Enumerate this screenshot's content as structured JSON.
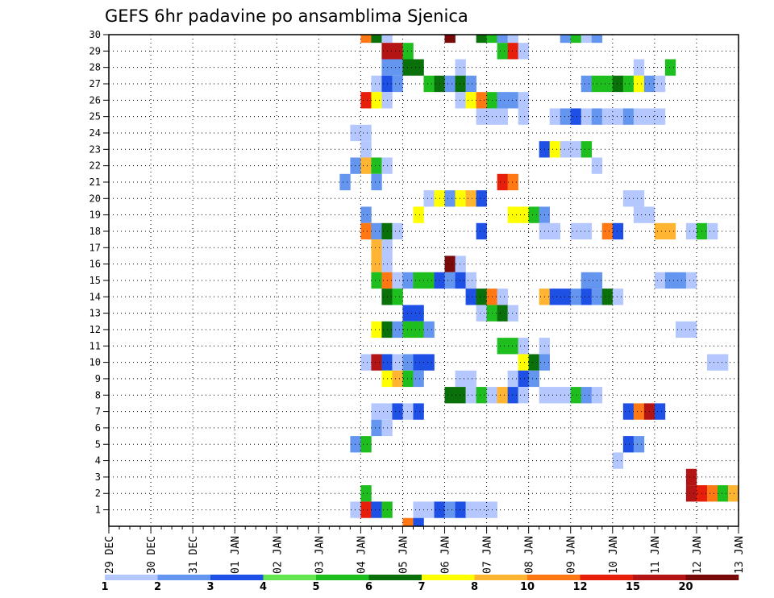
{
  "chart_data": {
    "type": "heatmap",
    "title": "GEFS 6hr padavine po ansamblima Sjenica",
    "xlabel": "",
    "ylabel": "",
    "x_tick_labels": [
      "29 DEC",
      "30 DEC",
      "31 DEC",
      "01 JAN",
      "02 JAN",
      "03 JAN",
      "04 JAN",
      "05 JAN",
      "06 JAN",
      "07 JAN",
      "08 JAN",
      "09 JAN",
      "10 JAN",
      "11 JAN",
      "12 JAN",
      "13 JAN"
    ],
    "y_tick_labels": [
      "1",
      "2",
      "3",
      "4",
      "5",
      "6",
      "7",
      "8",
      "9",
      "10",
      "11",
      "12",
      "13",
      "14",
      "15",
      "16",
      "17",
      "18",
      "19",
      "20",
      "21",
      "22",
      "23",
      "24",
      "25",
      "26",
      "27",
      "28",
      "29",
      "30"
    ],
    "time_step_hours": 6,
    "grid": true,
    "colorbar": {
      "placement": "bottom",
      "labels": [
        "1",
        "2",
        "3",
        "4",
        "5",
        "6",
        "7",
        "8",
        "10",
        "12",
        "15",
        "20"
      ],
      "colors": [
        "#b4c8ff",
        "#6496f0",
        "#1e50e6",
        "#64e650",
        "#1ebe1e",
        "#0a700a",
        "#ffff00",
        "#ffb432",
        "#ff7814",
        "#e61e0a",
        "#b41414",
        "#780a0a"
      ]
    },
    "cells": [
      {
        "m": 30,
        "t": 24,
        "v": 10
      },
      {
        "m": 30,
        "t": 25,
        "v": 6
      },
      {
        "m": 30,
        "t": 26,
        "v": 1
      },
      {
        "m": 30,
        "t": 32,
        "v": 20
      },
      {
        "m": 30,
        "t": 35,
        "v": 6
      },
      {
        "m": 30,
        "t": 36,
        "v": 5
      },
      {
        "m": 30,
        "t": 37,
        "v": 2
      },
      {
        "m": 30,
        "t": 38,
        "v": 1
      },
      {
        "m": 30,
        "t": 43,
        "v": 2
      },
      {
        "m": 30,
        "t": 44,
        "v": 5
      },
      {
        "m": 30,
        "t": 45,
        "v": 1
      },
      {
        "m": 30,
        "t": 46,
        "v": 2
      },
      {
        "m": 29,
        "t": 26,
        "v": 15
      },
      {
        "m": 29,
        "t": 27,
        "v": 15
      },
      {
        "m": 29,
        "t": 28,
        "v": 5
      },
      {
        "m": 29,
        "t": 37,
        "v": 5
      },
      {
        "m": 29,
        "t": 38,
        "v": 12
      },
      {
        "m": 29,
        "t": 39,
        "v": 1
      },
      {
        "m": 28,
        "t": 26,
        "v": 2
      },
      {
        "m": 28,
        "t": 27,
        "v": 2
      },
      {
        "m": 28,
        "t": 28,
        "v": 6
      },
      {
        "m": 28,
        "t": 29,
        "v": 6
      },
      {
        "m": 28,
        "t": 33,
        "v": 1
      },
      {
        "m": 28,
        "t": 50,
        "v": 1
      },
      {
        "m": 28,
        "t": 53,
        "v": 5
      },
      {
        "m": 27,
        "t": 25,
        "v": 1
      },
      {
        "m": 27,
        "t": 26,
        "v": 3
      },
      {
        "m": 27,
        "t": 27,
        "v": 2
      },
      {
        "m": 27,
        "t": 30,
        "v": 5
      },
      {
        "m": 27,
        "t": 31,
        "v": 6
      },
      {
        "m": 27,
        "t": 32,
        "v": 2
      },
      {
        "m": 27,
        "t": 33,
        "v": 6
      },
      {
        "m": 27,
        "t": 34,
        "v": 2
      },
      {
        "m": 27,
        "t": 45,
        "v": 2
      },
      {
        "m": 27,
        "t": 46,
        "v": 5
      },
      {
        "m": 27,
        "t": 47,
        "v": 5
      },
      {
        "m": 27,
        "t": 48,
        "v": 6
      },
      {
        "m": 27,
        "t": 49,
        "v": 5
      },
      {
        "m": 27,
        "t": 50,
        "v": 7
      },
      {
        "m": 27,
        "t": 51,
        "v": 2
      },
      {
        "m": 27,
        "t": 52,
        "v": 1
      },
      {
        "m": 26,
        "t": 24,
        "v": 12
      },
      {
        "m": 26,
        "t": 25,
        "v": 7
      },
      {
        "m": 26,
        "t": 26,
        "v": 1
      },
      {
        "m": 26,
        "t": 33,
        "v": 1
      },
      {
        "m": 26,
        "t": 34,
        "v": 7
      },
      {
        "m": 26,
        "t": 35,
        "v": 10
      },
      {
        "m": 26,
        "t": 36,
        "v": 5
      },
      {
        "m": 26,
        "t": 37,
        "v": 2
      },
      {
        "m": 26,
        "t": 38,
        "v": 2
      },
      {
        "m": 26,
        "t": 39,
        "v": 1
      },
      {
        "m": 25,
        "t": 35,
        "v": 1
      },
      {
        "m": 25,
        "t": 36,
        "v": 1
      },
      {
        "m": 25,
        "t": 37,
        "v": 1
      },
      {
        "m": 25,
        "t": 39,
        "v": 1
      },
      {
        "m": 25,
        "t": 42,
        "v": 1
      },
      {
        "m": 25,
        "t": 43,
        "v": 2
      },
      {
        "m": 25,
        "t": 44,
        "v": 3
      },
      {
        "m": 25,
        "t": 45,
        "v": 1
      },
      {
        "m": 25,
        "t": 46,
        "v": 2
      },
      {
        "m": 25,
        "t": 47,
        "v": 1
      },
      {
        "m": 25,
        "t": 48,
        "v": 1
      },
      {
        "m": 25,
        "t": 49,
        "v": 2
      },
      {
        "m": 25,
        "t": 50,
        "v": 1
      },
      {
        "m": 25,
        "t": 51,
        "v": 1
      },
      {
        "m": 25,
        "t": 52,
        "v": 1
      },
      {
        "m": 24,
        "t": 23,
        "v": 1
      },
      {
        "m": 24,
        "t": 24,
        "v": 1
      },
      {
        "m": 23,
        "t": 24,
        "v": 1
      },
      {
        "m": 23,
        "t": 41,
        "v": 3
      },
      {
        "m": 23,
        "t": 42,
        "v": 7
      },
      {
        "m": 23,
        "t": 43,
        "v": 1
      },
      {
        "m": 23,
        "t": 44,
        "v": 1
      },
      {
        "m": 23,
        "t": 45,
        "v": 5
      },
      {
        "m": 22,
        "t": 23,
        "v": 2
      },
      {
        "m": 22,
        "t": 24,
        "v": 8
      },
      {
        "m": 22,
        "t": 25,
        "v": 5
      },
      {
        "m": 22,
        "t": 26,
        "v": 1
      },
      {
        "m": 22,
        "t": 46,
        "v": 1
      },
      {
        "m": 21,
        "t": 22,
        "v": 2
      },
      {
        "m": 21,
        "t": 25,
        "v": 2
      },
      {
        "m": 21,
        "t": 37,
        "v": 12
      },
      {
        "m": 21,
        "t": 38,
        "v": 10
      },
      {
        "m": 20,
        "t": 30,
        "v": 1
      },
      {
        "m": 20,
        "t": 31,
        "v": 7
      },
      {
        "m": 20,
        "t": 32,
        "v": 2
      },
      {
        "m": 20,
        "t": 33,
        "v": 7
      },
      {
        "m": 20,
        "t": 34,
        "v": 8
      },
      {
        "m": 20,
        "t": 35,
        "v": 3
      },
      {
        "m": 20,
        "t": 49,
        "v": 1
      },
      {
        "m": 20,
        "t": 50,
        "v": 1
      },
      {
        "m": 19,
        "t": 24,
        "v": 2
      },
      {
        "m": 19,
        "t": 29,
        "v": 7
      },
      {
        "m": 19,
        "t": 38,
        "v": 7
      },
      {
        "m": 19,
        "t": 39,
        "v": 7
      },
      {
        "m": 19,
        "t": 40,
        "v": 5
      },
      {
        "m": 19,
        "t": 41,
        "v": 2
      },
      {
        "m": 19,
        "t": 50,
        "v": 1
      },
      {
        "m": 19,
        "t": 51,
        "v": 1
      },
      {
        "m": 18,
        "t": 24,
        "v": 10
      },
      {
        "m": 18,
        "t": 25,
        "v": 2
      },
      {
        "m": 18,
        "t": 26,
        "v": 6
      },
      {
        "m": 18,
        "t": 27,
        "v": 1
      },
      {
        "m": 18,
        "t": 35,
        "v": 3
      },
      {
        "m": 18,
        "t": 41,
        "v": 1
      },
      {
        "m": 18,
        "t": 42,
        "v": 1
      },
      {
        "m": 18,
        "t": 44,
        "v": 1
      },
      {
        "m": 18,
        "t": 45,
        "v": 1
      },
      {
        "m": 18,
        "t": 47,
        "v": 10
      },
      {
        "m": 18,
        "t": 48,
        "v": 3
      },
      {
        "m": 18,
        "t": 52,
        "v": 8
      },
      {
        "m": 18,
        "t": 53,
        "v": 8
      },
      {
        "m": 18,
        "t": 55,
        "v": 1
      },
      {
        "m": 18,
        "t": 56,
        "v": 5
      },
      {
        "m": 18,
        "t": 57,
        "v": 1
      },
      {
        "m": 17,
        "t": 25,
        "v": 8
      },
      {
        "m": 17,
        "t": 26,
        "v": 1
      },
      {
        "m": 16,
        "t": 25,
        "v": 8
      },
      {
        "m": 16,
        "t": 26,
        "v": 1
      },
      {
        "m": 16,
        "t": 32,
        "v": 20
      },
      {
        "m": 16,
        "t": 33,
        "v": 1
      },
      {
        "m": 15,
        "t": 25,
        "v": 5
      },
      {
        "m": 15,
        "t": 26,
        "v": 10
      },
      {
        "m": 15,
        "t": 27,
        "v": 1
      },
      {
        "m": 15,
        "t": 28,
        "v": 2
      },
      {
        "m": 15,
        "t": 29,
        "v": 5
      },
      {
        "m": 15,
        "t": 30,
        "v": 5
      },
      {
        "m": 15,
        "t": 31,
        "v": 3
      },
      {
        "m": 15,
        "t": 32,
        "v": 2
      },
      {
        "m": 15,
        "t": 33,
        "v": 3
      },
      {
        "m": 15,
        "t": 34,
        "v": 1
      },
      {
        "m": 15,
        "t": 45,
        "v": 2
      },
      {
        "m": 15,
        "t": 46,
        "v": 2
      },
      {
        "m": 15,
        "t": 52,
        "v": 1
      },
      {
        "m": 15,
        "t": 53,
        "v": 2
      },
      {
        "m": 15,
        "t": 54,
        "v": 2
      },
      {
        "m": 15,
        "t": 55,
        "v": 1
      },
      {
        "m": 14,
        "t": 26,
        "v": 6
      },
      {
        "m": 14,
        "t": 27,
        "v": 5
      },
      {
        "m": 14,
        "t": 34,
        "v": 3
      },
      {
        "m": 14,
        "t": 35,
        "v": 6
      },
      {
        "m": 14,
        "t": 36,
        "v": 10
      },
      {
        "m": 14,
        "t": 37,
        "v": 1
      },
      {
        "m": 14,
        "t": 41,
        "v": 8
      },
      {
        "m": 14,
        "t": 42,
        "v": 3
      },
      {
        "m": 14,
        "t": 43,
        "v": 3
      },
      {
        "m": 14,
        "t": 44,
        "v": 2
      },
      {
        "m": 14,
        "t": 45,
        "v": 3
      },
      {
        "m": 14,
        "t": 46,
        "v": 2
      },
      {
        "m": 14,
        "t": 47,
        "v": 6
      },
      {
        "m": 14,
        "t": 48,
        "v": 1
      },
      {
        "m": 13,
        "t": 28,
        "v": 3
      },
      {
        "m": 13,
        "t": 29,
        "v": 3
      },
      {
        "m": 13,
        "t": 35,
        "v": 1
      },
      {
        "m": 13,
        "t": 36,
        "v": 5
      },
      {
        "m": 13,
        "t": 37,
        "v": 6
      },
      {
        "m": 13,
        "t": 38,
        "v": 1
      },
      {
        "m": 12,
        "t": 25,
        "v": 7
      },
      {
        "m": 12,
        "t": 26,
        "v": 6
      },
      {
        "m": 12,
        "t": 27,
        "v": 2
      },
      {
        "m": 12,
        "t": 28,
        "v": 5
      },
      {
        "m": 12,
        "t": 29,
        "v": 5
      },
      {
        "m": 12,
        "t": 30,
        "v": 2
      },
      {
        "m": 12,
        "t": 54,
        "v": 1
      },
      {
        "m": 12,
        "t": 55,
        "v": 1
      },
      {
        "m": 11,
        "t": 37,
        "v": 5
      },
      {
        "m": 11,
        "t": 38,
        "v": 5
      },
      {
        "m": 11,
        "t": 39,
        "v": 1
      },
      {
        "m": 11,
        "t": 41,
        "v": 1
      },
      {
        "m": 10,
        "t": 24,
        "v": 1
      },
      {
        "m": 10,
        "t": 25,
        "v": 15
      },
      {
        "m": 10,
        "t": 26,
        "v": 3
      },
      {
        "m": 10,
        "t": 27,
        "v": 1
      },
      {
        "m": 10,
        "t": 28,
        "v": 2
      },
      {
        "m": 10,
        "t": 29,
        "v": 3
      },
      {
        "m": 10,
        "t": 30,
        "v": 3
      },
      {
        "m": 10,
        "t": 39,
        "v": 7
      },
      {
        "m": 10,
        "t": 40,
        "v": 6
      },
      {
        "m": 10,
        "t": 41,
        "v": 2
      },
      {
        "m": 10,
        "t": 57,
        "v": 1
      },
      {
        "m": 10,
        "t": 58,
        "v": 1
      },
      {
        "m": 9,
        "t": 26,
        "v": 7
      },
      {
        "m": 9,
        "t": 27,
        "v": 8
      },
      {
        "m": 9,
        "t": 28,
        "v": 5
      },
      {
        "m": 9,
        "t": 29,
        "v": 2
      },
      {
        "m": 9,
        "t": 33,
        "v": 1
      },
      {
        "m": 9,
        "t": 34,
        "v": 1
      },
      {
        "m": 9,
        "t": 38,
        "v": 1
      },
      {
        "m": 9,
        "t": 39,
        "v": 3
      },
      {
        "m": 9,
        "t": 40,
        "v": 2
      },
      {
        "m": 8,
        "t": 32,
        "v": 6
      },
      {
        "m": 8,
        "t": 33,
        "v": 6
      },
      {
        "m": 8,
        "t": 34,
        "v": 1
      },
      {
        "m": 8,
        "t": 35,
        "v": 5
      },
      {
        "m": 8,
        "t": 36,
        "v": 1
      },
      {
        "m": 8,
        "t": 37,
        "v": 8
      },
      {
        "m": 8,
        "t": 38,
        "v": 3
      },
      {
        "m": 8,
        "t": 39,
        "v": 1
      },
      {
        "m": 8,
        "t": 41,
        "v": 1
      },
      {
        "m": 8,
        "t": 42,
        "v": 1
      },
      {
        "m": 8,
        "t": 43,
        "v": 1
      },
      {
        "m": 8,
        "t": 44,
        "v": 5
      },
      {
        "m": 8,
        "t": 45,
        "v": 2
      },
      {
        "m": 8,
        "t": 46,
        "v": 1
      },
      {
        "m": 7,
        "t": 25,
        "v": 1
      },
      {
        "m": 7,
        "t": 26,
        "v": 1
      },
      {
        "m": 7,
        "t": 27,
        "v": 3
      },
      {
        "m": 7,
        "t": 28,
        "v": 1
      },
      {
        "m": 7,
        "t": 29,
        "v": 3
      },
      {
        "m": 7,
        "t": 49,
        "v": 3
      },
      {
        "m": 7,
        "t": 50,
        "v": 10
      },
      {
        "m": 7,
        "t": 51,
        "v": 15
      },
      {
        "m": 7,
        "t": 52,
        "v": 3
      },
      {
        "m": 6,
        "t": 25,
        "v": 2
      },
      {
        "m": 6,
        "t": 26,
        "v": 1
      },
      {
        "m": 5,
        "t": 23,
        "v": 2
      },
      {
        "m": 5,
        "t": 24,
        "v": 5
      },
      {
        "m": 5,
        "t": 49,
        "v": 3
      },
      {
        "m": 5,
        "t": 50,
        "v": 2
      },
      {
        "m": 4,
        "t": 48,
        "v": 1
      },
      {
        "m": 3,
        "t": 55,
        "v": 15
      },
      {
        "m": 2,
        "t": 24,
        "v": 5
      },
      {
        "m": 2,
        "t": 55,
        "v": 15
      },
      {
        "m": 2,
        "t": 56,
        "v": 12
      },
      {
        "m": 2,
        "t": 57,
        "v": 10
      },
      {
        "m": 2,
        "t": 58,
        "v": 5
      },
      {
        "m": 2,
        "t": 59,
        "v": 8
      },
      {
        "m": 1,
        "t": 23,
        "v": 1
      },
      {
        "m": 1,
        "t": 24,
        "v": 12
      },
      {
        "m": 1,
        "t": 25,
        "v": 3
      },
      {
        "m": 1,
        "t": 26,
        "v": 5
      },
      {
        "m": 1,
        "t": 29,
        "v": 1
      },
      {
        "m": 1,
        "t": 30,
        "v": 1
      },
      {
        "m": 1,
        "t": 31,
        "v": 3
      },
      {
        "m": 1,
        "t": 32,
        "v": 2
      },
      {
        "m": 1,
        "t": 33,
        "v": 3
      },
      {
        "m": 1,
        "t": 34,
        "v": 1
      },
      {
        "m": 1,
        "t": 35,
        "v": 1
      },
      {
        "m": 1,
        "t": 36,
        "v": 1
      },
      {
        "m": 0,
        "t": 28,
        "v": 10
      },
      {
        "m": 0,
        "t": 29,
        "v": 3
      }
    ]
  }
}
